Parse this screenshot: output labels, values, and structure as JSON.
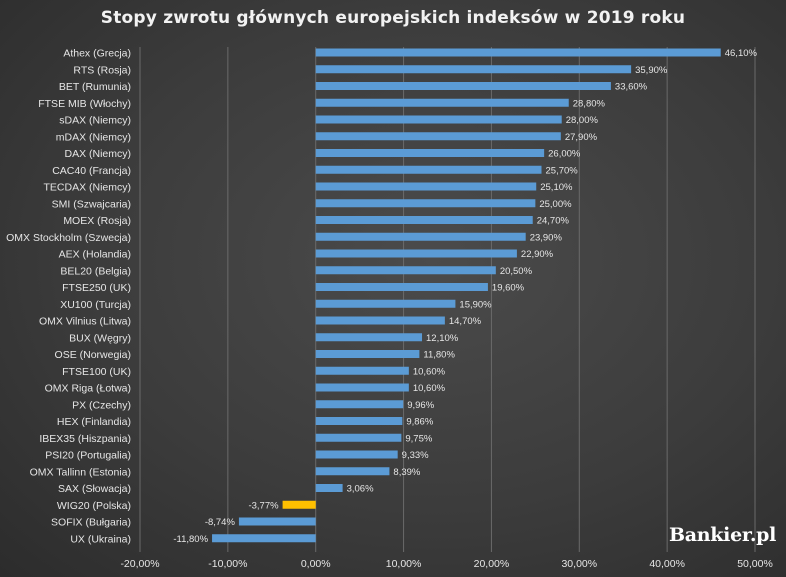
{
  "chart_data": {
    "type": "bar",
    "orientation": "horizontal",
    "title": "Stopy zwrotu głównych europejskich indeksów w 2019 roku",
    "categories": [
      "Athex (Grecja)",
      "RTS (Rosja)",
      "BET (Rumunia)",
      "FTSE MIB (Włochy)",
      "sDAX (Niemcy)",
      "mDAX (Niemcy)",
      "DAX (Niemcy)",
      "CAC40 (Francja)",
      "TECDAX (Niemcy)",
      "SMI (Szwajcaria)",
      "MOEX (Rosja)",
      "OMX Stockholm (Szwecja)",
      "AEX (Holandia)",
      "BEL20 (Belgia)",
      "FTSE250 (UK)",
      "XU100 (Turcja)",
      "OMX Vilnius (Litwa)",
      "BUX (Węgry)",
      "OSE (Norwegia)",
      "FTSE100 (UK)",
      "OMX Riga (Łotwa)",
      "PX (Czechy)",
      "HEX (Finlandia)",
      "IBEX35 (Hiszpania)",
      "PSI20 (Portugalia)",
      "OMX Tallinn (Estonia)",
      "SAX (Słowacja)",
      "WIG20 (Polska)",
      "SOFIX (Bułgaria)",
      "UX (Ukraina)"
    ],
    "values": [
      46.1,
      35.9,
      33.6,
      28.8,
      28.0,
      27.9,
      26.0,
      25.7,
      25.1,
      25.0,
      24.7,
      23.9,
      22.9,
      20.5,
      19.6,
      15.9,
      14.7,
      12.1,
      11.8,
      10.6,
      10.6,
      9.96,
      9.86,
      9.75,
      9.33,
      8.39,
      3.06,
      -3.77,
      -8.74,
      -11.8
    ],
    "value_labels": [
      "46,10%",
      "35,90%",
      "33,60%",
      "28,80%",
      "28,00%",
      "27,90%",
      "26,00%",
      "25,70%",
      "25,10%",
      "25,00%",
      "24,70%",
      "23,90%",
      "22,90%",
      "20,50%",
      "19,60%",
      "15,90%",
      "14,70%",
      "12,10%",
      "11,80%",
      "10,60%",
      "10,60%",
      "9,96%",
      "9,86%",
      "9,75%",
      "9,33%",
      "8,39%",
      "3,06%",
      "-3,77%",
      "-8,74%",
      "-11,80%"
    ],
    "highlight_category": "WIG20 (Polska)",
    "xlim": [
      -20,
      50
    ],
    "x_ticks": [
      -20,
      -10,
      0,
      10,
      20,
      30,
      40,
      50
    ],
    "x_tick_labels": [
      "-20,00%",
      "-10,00%",
      "0,00%",
      "10,00%",
      "20,00%",
      "30,00%",
      "40,00%",
      "50,00%"
    ],
    "grid": "vertical",
    "legend": "none",
    "colors": {
      "bar": "#5b9bd5",
      "highlight": "#ffc000",
      "background": "#404040",
      "text": "#e6e6e6"
    }
  },
  "branding": {
    "logo_text": "Bankier.pl"
  }
}
